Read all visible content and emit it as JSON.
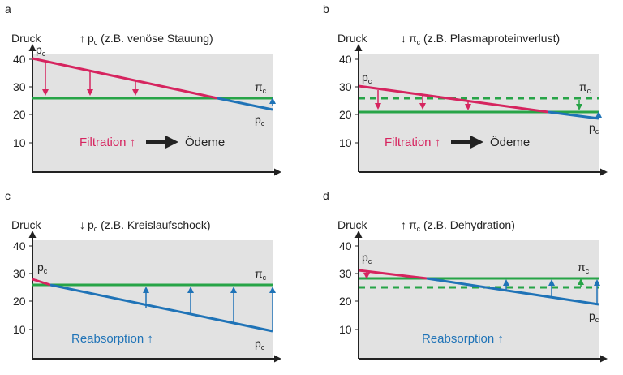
{
  "colors": {
    "pc_line_red": "#d6245f",
    "pc_line_blue": "#1f73b7",
    "pi_line_green": "#27a447",
    "panel_bg": "#e2e2e2"
  },
  "y_axis_label": "Druck",
  "y_ticks": [
    "40",
    "30",
    "20",
    "10"
  ],
  "panels": [
    {
      "letter": "a",
      "title_arrow": "↑",
      "title_symbol": "p",
      "title_sub": "c",
      "title_text": " (z.B. venöse Stauung)",
      "left_label": "p",
      "left_label_sub": "c",
      "right_top_label": "π",
      "right_top_label_sub": "c",
      "right_bottom_label": "p",
      "right_bottom_label_sub": "c",
      "bottom_text": "Filtration ↑",
      "bottom_result": "Ödeme"
    },
    {
      "letter": "b",
      "title_arrow": "↓",
      "title_symbol": "π",
      "title_sub": "c",
      "title_text": " (z.B. Plasmaproteinverlust)",
      "left_label": "p",
      "left_label_sub": "c",
      "right_top_label": "π",
      "right_top_label_sub": "c",
      "right_bottom_label": "p",
      "right_bottom_label_sub": "c",
      "bottom_text": "Filtration ↑",
      "bottom_result": "Ödeme"
    },
    {
      "letter": "c",
      "title_arrow": "↓",
      "title_symbol": "p",
      "title_sub": "c",
      "title_text": " (z.B. Kreislaufschock)",
      "left_label": "p",
      "left_label_sub": "c",
      "right_top_label": "π",
      "right_top_label_sub": "c",
      "right_bottom_label": "p",
      "right_bottom_label_sub": "c",
      "bottom_text": "Reabsorption ↑"
    },
    {
      "letter": "d",
      "title_arrow": "↑",
      "title_symbol": "π",
      "title_sub": "c",
      "title_text": " (z.B. Dehydration)",
      "left_label": "p",
      "left_label_sub": "c",
      "right_top_label": "π",
      "right_top_label_sub": "c",
      "right_bottom_label": "p",
      "right_bottom_label_sub": "c",
      "bottom_text": "Reabsorption ↑"
    }
  ]
}
